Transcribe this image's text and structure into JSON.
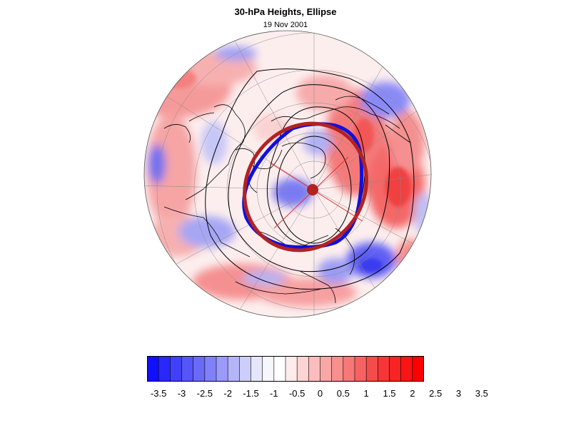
{
  "header": {
    "title": "30-hPa Heights, Ellipse",
    "subtitle": "19 Nov 2001"
  },
  "colorbar": {
    "labels": [
      "-3.5",
      "-3",
      "-2.5",
      "-2",
      "-1.5",
      "-1",
      "-0.5",
      "0",
      "0.5",
      "1",
      "1.5",
      "2",
      "2.5",
      "3",
      "3.5"
    ],
    "colors": [
      "#1010ff",
      "#2828fc",
      "#4040f8",
      "#5555f8",
      "#6a6af8",
      "#8080f8",
      "#9a9af8",
      "#b4b4f8",
      "#cdcdf9",
      "#e6e6fb",
      "#f6f6fd",
      "#ffffff",
      "#fdeaea",
      "#fcd4d4",
      "#fbbdbd",
      "#f9a6a6",
      "#f88f8f",
      "#f77878",
      "#f66262",
      "#f54b4b",
      "#f63636",
      "#f82323",
      "#fa1414",
      "#ff0000"
    ]
  },
  "map": {
    "projection": "polar stereographic, north pole centered",
    "ellipse_color": "#b22222",
    "contour_color": "#1010dd",
    "center_marker_color": "#b22222"
  }
}
